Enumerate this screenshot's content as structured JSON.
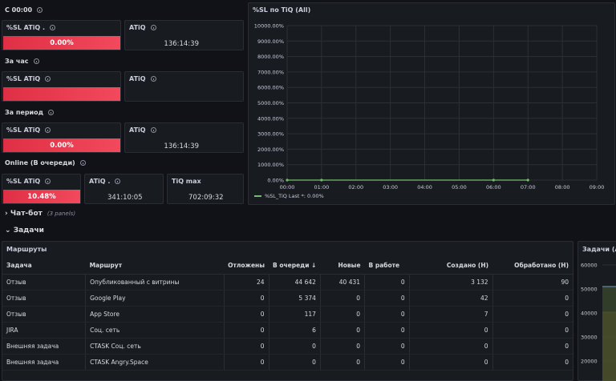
{
  "since_midnight": {
    "header": "С 00:00",
    "sl_title": "%SL ATiQ .",
    "sl_value": "0.00%",
    "atiq_title": "ATiQ",
    "atiq_value": "136:14:39"
  },
  "per_hour": {
    "header": "За час",
    "sl_title": "%SL ATiQ",
    "sl_value": "",
    "atiq_title": "ATiQ",
    "atiq_value": ""
  },
  "per_period": {
    "header": "За период",
    "sl_title": "%SL ATiQ",
    "sl_value": "0.00%",
    "atiq_title": "ATiQ",
    "atiq_value": "136:14:39"
  },
  "online": {
    "header": "Online (В очереди)",
    "sl_title": "%SL ATiQ",
    "sl_value": "10.48%",
    "atiq_title": "ATiQ .",
    "atiq_value": "341:10:05",
    "tiq_title": "TiQ max",
    "tiq_value": "702:09:32"
  },
  "chatbot_row": {
    "title": "Чат-бот",
    "note": "(3 panels)"
  },
  "tasks_row": {
    "title": "Задачи"
  },
  "routes": {
    "title": "Маршруты",
    "columns": [
      "Задача",
      "Маршрут",
      "Отложены",
      "В очереди ↓",
      "Новые",
      "В работе",
      "Создано (H)",
      "Обработано (H)"
    ],
    "rows": [
      [
        "Отзыв",
        "Опубликованный с витрины",
        "24",
        "44 642",
        "40 431",
        "0",
        "3 132",
        "90"
      ],
      [
        "Отзыв",
        "Google Play",
        "0",
        "5 374",
        "0",
        "0",
        "42",
        "0"
      ],
      [
        "Отзыв",
        "App Store",
        "0",
        "117",
        "0",
        "0",
        "7",
        "0"
      ],
      [
        "JIRA",
        "Соц. сеть",
        "0",
        "6",
        "0",
        "0",
        "0",
        "0"
      ],
      [
        "Внешняя задача",
        "CTASK Соц. сеть",
        "0",
        "0",
        "0",
        "0",
        "0",
        "0"
      ],
      [
        "Внешняя задача",
        "CTASK Angry.Space",
        "0",
        "0",
        "0",
        "0",
        "0",
        "0"
      ]
    ]
  },
  "tasks_right": {
    "title": "Задачи (All)",
    "y_ticks": [
      "60000",
      "50000",
      "40000",
      "30000",
      "20000"
    ]
  },
  "colors": {
    "red": "#f2495c",
    "green": "#73bf69",
    "bg": "#111217",
    "panel": "#181b1f"
  },
  "chart_data": {
    "type": "line",
    "title": "%SL по TiQ (All)",
    "x": [
      "00:00",
      "01:00",
      "02:00",
      "03:00",
      "04:00",
      "05:00",
      "06:00",
      "07:00",
      "08:00",
      "09:00"
    ],
    "y_ticks": [
      "0.00%",
      "1000.00%",
      "2000.00%",
      "3000.00%",
      "4000.00%",
      "5000.00%",
      "6000.00%",
      "7000.00%",
      "8000.00%",
      "9000.00%",
      "10000.00%"
    ],
    "ylim": [
      0,
      10000
    ],
    "series": [
      {
        "name": "%SL_TiQ",
        "legend": "%SL_TiQ  Last *: 0.00%",
        "color": "#73bf69",
        "points": [
          [
            0,
            0
          ],
          [
            1,
            0
          ],
          [
            6,
            0
          ],
          [
            7,
            0
          ]
        ]
      }
    ]
  }
}
